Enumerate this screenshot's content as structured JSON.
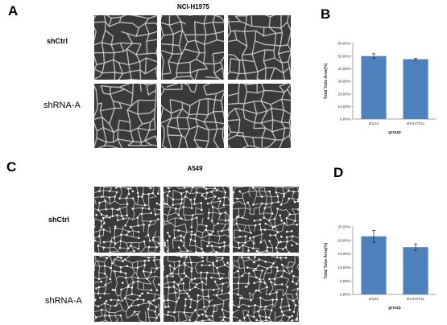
{
  "figure": {
    "panels": {
      "A": {
        "letter": "A",
        "title": "NCI-H1975",
        "rows": [
          "shCtrl",
          "shRNA-A"
        ]
      },
      "B": {
        "letter": "B"
      },
      "C": {
        "letter": "C",
        "title": "A549",
        "rows": [
          "shCtrl",
          "shRNA-A"
        ]
      },
      "D": {
        "letter": "D"
      }
    }
  },
  "chart_data": [
    {
      "panel": "B",
      "type": "bar",
      "categories": [
        "shCtrl",
        "shACOT11"
      ],
      "values": [
        50.0,
        47.5
      ],
      "errors": [
        1.8,
        0.8
      ],
      "xlabel": "group",
      "ylabel": "Total Tube Area(%)",
      "ylim": [
        0,
        60
      ],
      "yticks": [
        "0.00%",
        "10.00%",
        "20.00%",
        "30.00%",
        "40.00%",
        "50.00%",
        "60.00%"
      ],
      "grid": false,
      "bar_color": "#4f81bd"
    },
    {
      "panel": "D",
      "type": "bar",
      "categories": [
        "shCtrl",
        "shACOT11"
      ],
      "values": [
        21.5,
        17.5
      ],
      "errors": [
        2.2,
        1.2
      ],
      "xlabel": "group",
      "ylabel": "Total Tube Area(%)",
      "ylim": [
        0,
        25
      ],
      "yticks": [
        "0.00%",
        "5.00%",
        "10.00%",
        "15.00%",
        "20.00%",
        "25.00%"
      ],
      "grid": false,
      "bar_color": "#4f81bd"
    }
  ]
}
